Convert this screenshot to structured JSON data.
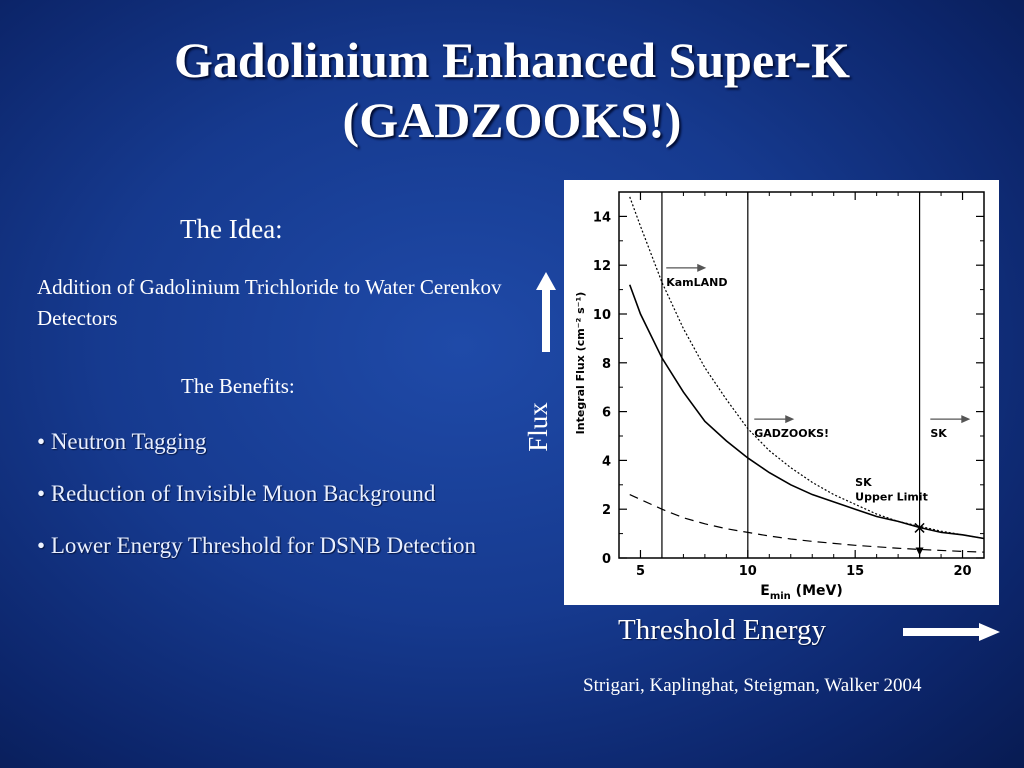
{
  "slide": {
    "title_line1": "Gadolinium Enhanced Super-K",
    "title_line2": "(GADZOOKS!)",
    "idea_heading": "The Idea:",
    "idea_text": "Addition of Gadolinium Trichloride to Water Cerenkov Detectors",
    "benefits_heading": "The Benefits:",
    "bullet_symbol": "•",
    "bullets": [
      "Neutron Tagging",
      "Reduction of Invisible Muon Background",
      "Lower Energy Threshold for DSNB Detection"
    ],
    "flux_label": "Flux",
    "threshold_label": "Threshold Energy",
    "citation": "Strigari, Kaplinghat, Steigman, Walker 2004"
  },
  "chart_data": {
    "type": "line",
    "xlabel": "E",
    "xlabel_sub": "min",
    "xlabel_unit": "(MeV)",
    "ylabel": "Integral Flux (cm⁻² s⁻¹)",
    "xlim": [
      4,
      21
    ],
    "ylim": [
      0,
      15
    ],
    "x_ticks": [
      5,
      10,
      15,
      20
    ],
    "y_ticks": [
      0,
      2,
      4,
      6,
      8,
      10,
      12,
      14
    ],
    "x": [
      4.5,
      5,
      6,
      7,
      8,
      9,
      10,
      11,
      12,
      13,
      14,
      15,
      16,
      17,
      18,
      19,
      20,
      21
    ],
    "series": [
      {
        "style": "dotdash",
        "values": [
          14.8,
          13.6,
          11.3,
          9.4,
          7.8,
          6.5,
          5.3,
          4.4,
          3.7,
          3.1,
          2.6,
          2.2,
          1.8,
          1.5,
          1.3,
          1.1,
          0.95,
          0.8
        ]
      },
      {
        "style": "solid",
        "values": [
          11.2,
          10.0,
          8.2,
          6.8,
          5.6,
          4.8,
          4.1,
          3.5,
          3.0,
          2.6,
          2.3,
          2.0,
          1.7,
          1.5,
          1.25,
          1.05,
          0.95,
          0.8
        ]
      },
      {
        "style": "dashed",
        "values": [
          2.6,
          2.4,
          2.0,
          1.65,
          1.4,
          1.2,
          1.05,
          0.9,
          0.78,
          0.68,
          0.6,
          0.52,
          0.46,
          0.4,
          0.35,
          0.31,
          0.27,
          0.24
        ]
      }
    ],
    "vertical_lines": [
      6,
      10,
      18
    ],
    "annotations": [
      {
        "text": "KamLAND",
        "x": 6.2,
        "y": 11.4,
        "arrow": true
      },
      {
        "text": "GADZOOKS!",
        "x": 10.3,
        "y": 5.2,
        "arrow": true
      },
      {
        "text": "SK",
        "x": 18.5,
        "y": 5.2,
        "arrow": true
      },
      {
        "text": "SK",
        "x": 15.0,
        "y": 3.2,
        "arrow": false
      },
      {
        "text": "Upper Limit",
        "x": 15.0,
        "y": 2.6,
        "arrow": false
      }
    ],
    "marker": {
      "x": 18,
      "y": 1.25,
      "symbol": "×"
    }
  }
}
